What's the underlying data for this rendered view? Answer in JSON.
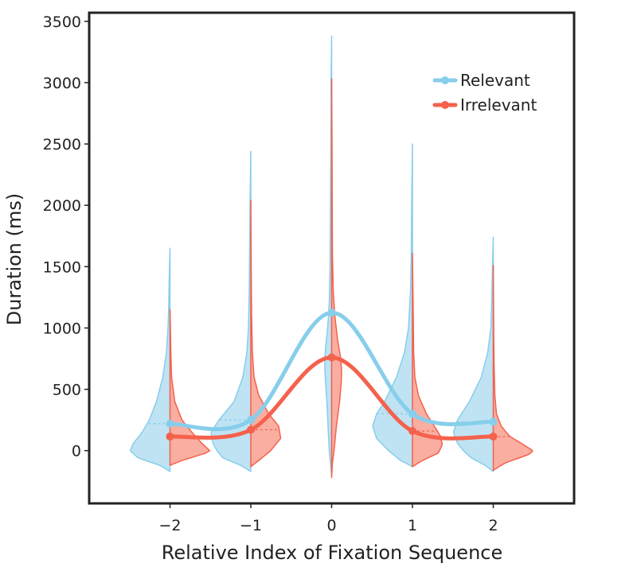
{
  "chart_data": {
    "type": "violin",
    "title": "",
    "xlabel": "Relative Index of Fixation Sequence",
    "ylabel": "Duration (ms)",
    "categories": [
      -2,
      -1,
      0,
      1,
      2
    ],
    "x_tick_labels": [
      "−2",
      "−1",
      "0",
      "1",
      "2"
    ],
    "xlim": [
      -3,
      3
    ],
    "ylim": [
      -430,
      3570
    ],
    "y_ticks": [
      0,
      500,
      1000,
      1500,
      2000,
      2500,
      3000,
      3500
    ],
    "y_tick_labels": [
      "0",
      "500",
      "1000",
      "1500",
      "2000",
      "2500",
      "3000",
      "3500"
    ],
    "grid": false,
    "legend_position": "top-right",
    "series": [
      {
        "name": "Relevant",
        "color": "#87CEEB",
        "fill": "#BFE3F3",
        "side": "left",
        "means": [
          220,
          250,
          1125,
          300,
          235
        ],
        "distributions": [
          {
            "range": [
              -170,
              1650
            ],
            "profile": [
              [
                -170,
                0.0
              ],
              [
                -120,
                0.25
              ],
              [
                -60,
                0.8
              ],
              [
                0,
                1.0
              ],
              [
                60,
                0.92
              ],
              [
                150,
                0.7
              ],
              [
                250,
                0.52
              ],
              [
                400,
                0.34
              ],
              [
                600,
                0.18
              ],
              [
                800,
                0.09
              ],
              [
                1000,
                0.05
              ],
              [
                1200,
                0.03
              ],
              [
                1400,
                0.02
              ],
              [
                1650,
                0.0
              ]
            ]
          },
          {
            "range": [
              -170,
              2440
            ],
            "profile": [
              [
                -170,
                0.0
              ],
              [
                -120,
                0.25
              ],
              [
                -60,
                0.7
              ],
              [
                0,
                0.85
              ],
              [
                60,
                0.95
              ],
              [
                150,
                1.0
              ],
              [
                250,
                0.8
              ],
              [
                400,
                0.42
              ],
              [
                600,
                0.2
              ],
              [
                800,
                0.1
              ],
              [
                1000,
                0.06
              ],
              [
                1300,
                0.04
              ],
              [
                1600,
                0.03
              ],
              [
                2000,
                0.02
              ],
              [
                2440,
                0.0
              ]
            ]
          },
          {
            "range": [
              -200,
              3380
            ],
            "profile": [
              [
                -200,
                0.0
              ],
              [
                -100,
                0.03
              ],
              [
                0,
                0.06
              ],
              [
                200,
                0.09
              ],
              [
                400,
                0.12
              ],
              [
                550,
                0.15
              ],
              [
                650,
                0.17
              ],
              [
                750,
                0.17
              ],
              [
                850,
                0.15
              ],
              [
                1000,
                0.1
              ],
              [
                1200,
                0.06
              ],
              [
                1500,
                0.04
              ],
              [
                2000,
                0.03
              ],
              [
                2500,
                0.02
              ],
              [
                3000,
                0.015
              ],
              [
                3380,
                0.0
              ]
            ]
          },
          {
            "range": [
              -130,
              2500
            ],
            "profile": [
              [
                -130,
                0.0
              ],
              [
                -80,
                0.3
              ],
              [
                0,
                0.6
              ],
              [
                100,
                0.9
              ],
              [
                200,
                1.0
              ],
              [
                300,
                0.9
              ],
              [
                400,
                0.7
              ],
              [
                600,
                0.4
              ],
              [
                800,
                0.2
              ],
              [
                1000,
                0.1
              ],
              [
                1300,
                0.05
              ],
              [
                1600,
                0.03
              ],
              [
                2000,
                0.02
              ],
              [
                2500,
                0.0
              ]
            ]
          },
          {
            "range": [
              -170,
              1740
            ],
            "profile": [
              [
                -170,
                0.0
              ],
              [
                -120,
                0.2
              ],
              [
                -60,
                0.55
              ],
              [
                0,
                0.75
              ],
              [
                60,
                0.9
              ],
              [
                150,
                1.0
              ],
              [
                250,
                0.9
              ],
              [
                400,
                0.6
              ],
              [
                600,
                0.3
              ],
              [
                800,
                0.14
              ],
              [
                1000,
                0.06
              ],
              [
                1200,
                0.04
              ],
              [
                1500,
                0.02
              ],
              [
                1740,
                0.0
              ]
            ]
          }
        ]
      },
      {
        "name": "Irrelevant",
        "color": "#F4614C",
        "fill": "#F9AEA1",
        "side": "right",
        "means": [
          115,
          170,
          760,
          160,
          115
        ],
        "distributions": [
          {
            "range": [
              -120,
              1150
            ],
            "profile": [
              [
                -120,
                0.0
              ],
              [
                -80,
                0.3
              ],
              [
                -20,
                0.9
              ],
              [
                0,
                1.0
              ],
              [
                60,
                0.8
              ],
              [
                150,
                0.55
              ],
              [
                250,
                0.3
              ],
              [
                400,
                0.12
              ],
              [
                600,
                0.04
              ],
              [
                800,
                0.02
              ],
              [
                1000,
                0.01
              ],
              [
                1150,
                0.0
              ]
            ]
          },
          {
            "range": [
              -130,
              2040
            ],
            "profile": [
              [
                -130,
                0.0
              ],
              [
                -80,
                0.2
              ],
              [
                0,
                0.5
              ],
              [
                100,
                0.75
              ],
              [
                200,
                0.7
              ],
              [
                300,
                0.45
              ],
              [
                450,
                0.2
              ],
              [
                600,
                0.08
              ],
              [
                800,
                0.04
              ],
              [
                1100,
                0.02
              ],
              [
                1500,
                0.01
              ],
              [
                2040,
                0.0
              ]
            ]
          },
          {
            "range": [
              -220,
              3030
            ],
            "profile": [
              [
                -220,
                0.0
              ],
              [
                -100,
                0.02
              ],
              [
                0,
                0.06
              ],
              [
                200,
                0.12
              ],
              [
                400,
                0.2
              ],
              [
                550,
                0.24
              ],
              [
                650,
                0.25
              ],
              [
                750,
                0.23
              ],
              [
                900,
                0.15
              ],
              [
                1100,
                0.08
              ],
              [
                1300,
                0.04
              ],
              [
                1600,
                0.02
              ],
              [
                2000,
                0.015
              ],
              [
                2500,
                0.01
              ],
              [
                3030,
                0.0
              ]
            ]
          },
          {
            "range": [
              -130,
              1610
            ],
            "profile": [
              [
                -130,
                0.0
              ],
              [
                -80,
                0.25
              ],
              [
                -20,
                0.65
              ],
              [
                50,
                0.75
              ],
              [
                120,
                0.7
              ],
              [
                200,
                0.55
              ],
              [
                300,
                0.35
              ],
              [
                450,
                0.15
              ],
              [
                600,
                0.06
              ],
              [
                800,
                0.03
              ],
              [
                1100,
                0.02
              ],
              [
                1610,
                0.0
              ]
            ]
          },
          {
            "range": [
              -160,
              1510
            ],
            "profile": [
              [
                -160,
                0.0
              ],
              [
                -100,
                0.3
              ],
              [
                -30,
                0.9
              ],
              [
                0,
                1.0
              ],
              [
                50,
                0.75
              ],
              [
                120,
                0.4
              ],
              [
                200,
                0.2
              ],
              [
                300,
                0.08
              ],
              [
                450,
                0.04
              ],
              [
                700,
                0.02
              ],
              [
                1000,
                0.01
              ],
              [
                1510,
                0.0
              ]
            ]
          }
        ]
      }
    ]
  }
}
